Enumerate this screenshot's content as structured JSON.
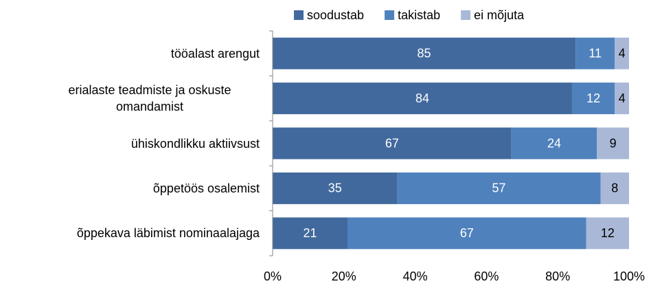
{
  "chart_data": {
    "type": "stacked_barh",
    "categories": [
      "tööalast arengut",
      "erialaste teadmiste ja oskuste omandamist",
      "ühiskondlikku aktiivsust",
      "õppetöös osalemist",
      "õppekava läbimist nominaalajaga"
    ],
    "series": [
      {
        "name": "soodustab",
        "color": "#41699d",
        "values": [
          85,
          84,
          67,
          35,
          21
        ]
      },
      {
        "name": "takistab",
        "color": "#4f81bd",
        "values": [
          11,
          12,
          24,
          57,
          67
        ]
      },
      {
        "name": "ei mõjuta",
        "color": "#a9b8d7",
        "values": [
          4,
          4,
          9,
          8,
          12
        ]
      }
    ],
    "xlim": [
      0,
      100
    ],
    "xticks": [
      {
        "value": 0,
        "label": "0%"
      },
      {
        "value": 20,
        "label": "20%"
      },
      {
        "value": 40,
        "label": "40%"
      },
      {
        "value": 60,
        "label": "60%"
      },
      {
        "value": 80,
        "label": "80%"
      },
      {
        "value": 100,
        "label": "100%"
      }
    ],
    "legend": "top"
  }
}
